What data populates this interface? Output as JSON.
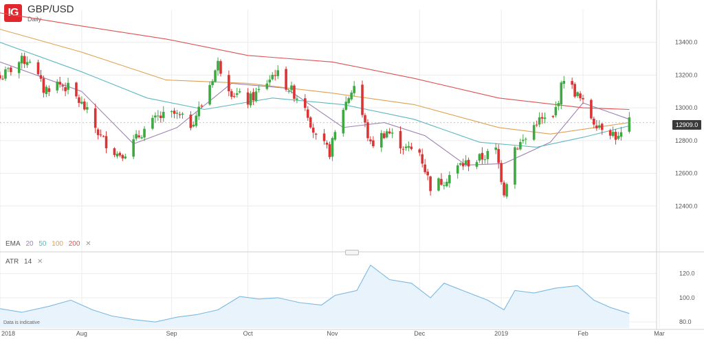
{
  "header": {
    "logo_text": "IG",
    "symbol": "GBP/USD",
    "interval": "Daily",
    "disclaimer": "Data is indicative"
  },
  "indicators": {
    "ema": {
      "label": "EMA",
      "periods": [
        {
          "value": "20",
          "color": "#9b7fb5"
        },
        {
          "value": "50",
          "color": "#5bb8c0"
        },
        {
          "value": "100",
          "color": "#e0a050"
        },
        {
          "value": "200",
          "color": "#e05050"
        }
      ],
      "close": "✕"
    },
    "atr": {
      "label": "ATR",
      "period": "14",
      "close": "✕"
    }
  },
  "colors": {
    "up": "#3ea843",
    "down": "#d93535",
    "atr_line": "#7ab8e0",
    "atr_fill": "#e8f3fb",
    "grid": "#ececec",
    "last_price_tag": "#3a3a3a"
  },
  "chart_data": [
    {
      "type": "candlestick",
      "title": "GBP/USD",
      "x_range": [
        "2018-07-02",
        "2019-02-28"
      ],
      "x_ticks": [
        {
          "label": "2018",
          "date": "2018-07-02"
        },
        {
          "label": "Aug",
          "date": "2018-08-01"
        },
        {
          "label": "Sep",
          "date": "2018-09-03"
        },
        {
          "label": "Oct",
          "date": "2018-10-01"
        },
        {
          "label": "Nov",
          "date": "2018-11-01"
        },
        {
          "label": "Dec",
          "date": "2018-12-03"
        },
        {
          "label": "2019",
          "date": "2019-01-02"
        },
        {
          "label": "Feb",
          "date": "2019-02-01"
        },
        {
          "label": "Mar",
          "date": "2019-03-01"
        }
      ],
      "ylim": [
        12200,
        13600
      ],
      "y_ticks": [
        "13400.0",
        "13200.0",
        "13000.0",
        "12800.0",
        "12600.0",
        "12400.0"
      ],
      "last_price": "12909.0",
      "grid": true,
      "close_path": [
        [
          "2018-07-02",
          13180
        ],
        [
          "2018-07-09",
          13280
        ],
        [
          "2018-07-13",
          13300
        ],
        [
          "2018-07-18",
          13110
        ],
        [
          "2018-07-23",
          13150
        ],
        [
          "2018-07-27",
          13120
        ],
        [
          "2018-08-02",
          13000
        ],
        [
          "2018-08-08",
          12820
        ],
        [
          "2018-08-14",
          12720
        ],
        [
          "2018-08-17",
          12730
        ],
        [
          "2018-08-23",
          12850
        ],
        [
          "2018-08-29",
          12940
        ],
        [
          "2018-09-04",
          12960
        ],
        [
          "2018-09-10",
          12900
        ],
        [
          "2018-09-14",
          13020
        ],
        [
          "2018-09-20",
          13270
        ],
        [
          "2018-09-25",
          13100
        ],
        [
          "2018-10-01",
          13040
        ],
        [
          "2018-10-05",
          13100
        ],
        [
          "2018-10-11",
          13220
        ],
        [
          "2018-10-16",
          13120
        ],
        [
          "2018-10-22",
          13020
        ],
        [
          "2018-10-26",
          12810
        ],
        [
          "2018-10-31",
          12730
        ],
        [
          "2018-11-05",
          13000
        ],
        [
          "2018-11-09",
          13140
        ],
        [
          "2018-11-15",
          12770
        ],
        [
          "2018-11-21",
          12860
        ],
        [
          "2018-11-28",
          12750
        ],
        [
          "2018-12-03",
          12730
        ],
        [
          "2018-12-07",
          12520
        ],
        [
          "2018-12-12",
          12560
        ],
        [
          "2018-12-18",
          12650
        ],
        [
          "2018-12-24",
          12680
        ],
        [
          "2018-12-31",
          12740
        ],
        [
          "2019-01-03",
          12490
        ],
        [
          "2019-01-07",
          12760
        ],
        [
          "2019-01-11",
          12810
        ],
        [
          "2019-01-15",
          12920
        ],
        [
          "2019-01-21",
          12930
        ],
        [
          "2019-01-25",
          13190
        ],
        [
          "2019-01-31",
          13050
        ],
        [
          "2019-02-05",
          12920
        ],
        [
          "2019-02-11",
          12860
        ],
        [
          "2019-02-14",
          12810
        ],
        [
          "2019-02-18",
          12909
        ]
      ],
      "ema": [
        {
          "name": "20",
          "color": "#9b7fb5",
          "points": [
            [
              "2018-07-02",
              13280
            ],
            [
              "2018-08-01",
              13100
            ],
            [
              "2018-08-20",
              12780
            ],
            [
              "2018-09-05",
              12880
            ],
            [
              "2018-09-25",
              13150
            ],
            [
              "2018-10-15",
              13120
            ],
            [
              "2018-11-05",
              12880
            ],
            [
              "2018-11-20",
              12910
            ],
            [
              "2018-12-05",
              12830
            ],
            [
              "2018-12-20",
              12650
            ],
            [
              "2019-01-03",
              12660
            ],
            [
              "2019-01-20",
              12790
            ],
            [
              "2019-02-01",
              13030
            ],
            [
              "2019-02-18",
              12930
            ]
          ]
        },
        {
          "name": "50",
          "color": "#5bb8c0",
          "points": [
            [
              "2018-07-02",
              13400
            ],
            [
              "2018-08-01",
              13220
            ],
            [
              "2018-08-25",
              13060
            ],
            [
              "2018-09-15",
              12990
            ],
            [
              "2018-10-10",
              13060
            ],
            [
              "2018-11-05",
              13020
            ],
            [
              "2018-12-01",
              12930
            ],
            [
              "2018-12-25",
              12790
            ],
            [
              "2019-01-15",
              12760
            ],
            [
              "2019-02-01",
              12820
            ],
            [
              "2019-02-18",
              12890
            ]
          ]
        },
        {
          "name": "100",
          "color": "#e0a050",
          "points": [
            [
              "2018-07-02",
              13480
            ],
            [
              "2018-08-01",
              13340
            ],
            [
              "2018-09-01",
              13170
            ],
            [
              "2018-10-01",
              13150
            ],
            [
              "2018-11-01",
              13090
            ],
            [
              "2018-12-01",
              13020
            ],
            [
              "2019-01-01",
              12880
            ],
            [
              "2019-01-20",
              12840
            ],
            [
              "2019-02-18",
              12910
            ]
          ]
        },
        {
          "name": "200",
          "color": "#e05050",
          "points": [
            [
              "2018-07-02",
              13580
            ],
            [
              "2018-08-01",
              13500
            ],
            [
              "2018-09-01",
              13420
            ],
            [
              "2018-10-01",
              13320
            ],
            [
              "2018-11-01",
              13280
            ],
            [
              "2018-12-01",
              13180
            ],
            [
              "2019-01-01",
              13060
            ],
            [
              "2019-02-01",
              13000
            ],
            [
              "2019-02-18",
              12990
            ]
          ]
        }
      ]
    },
    {
      "type": "area",
      "title": "ATR 14",
      "ylim": [
        75,
        130
      ],
      "y_ticks": [
        "120.0",
        "100.0",
        "80.0"
      ],
      "points": [
        [
          "2018-07-02",
          91
        ],
        [
          "2018-07-10",
          88
        ],
        [
          "2018-07-20",
          93
        ],
        [
          "2018-07-28",
          98
        ],
        [
          "2018-08-05",
          90
        ],
        [
          "2018-08-12",
          85
        ],
        [
          "2018-08-20",
          82
        ],
        [
          "2018-08-28",
          80
        ],
        [
          "2018-09-05",
          84
        ],
        [
          "2018-09-12",
          86
        ],
        [
          "2018-09-20",
          90
        ],
        [
          "2018-09-28",
          101
        ],
        [
          "2018-10-05",
          99
        ],
        [
          "2018-10-12",
          100
        ],
        [
          "2018-10-20",
          96
        ],
        [
          "2018-10-28",
          94
        ],
        [
          "2018-11-02",
          102
        ],
        [
          "2018-11-10",
          106
        ],
        [
          "2018-11-15",
          127
        ],
        [
          "2018-11-22",
          115
        ],
        [
          "2018-11-30",
          112
        ],
        [
          "2018-12-07",
          100
        ],
        [
          "2018-12-12",
          112
        ],
        [
          "2018-12-20",
          105
        ],
        [
          "2018-12-28",
          98
        ],
        [
          "2019-01-03",
          90
        ],
        [
          "2019-01-07",
          106
        ],
        [
          "2019-01-14",
          104
        ],
        [
          "2019-01-22",
          108
        ],
        [
          "2019-01-30",
          110
        ],
        [
          "2019-02-05",
          98
        ],
        [
          "2019-02-11",
          92
        ],
        [
          "2019-02-18",
          87
        ]
      ]
    }
  ]
}
